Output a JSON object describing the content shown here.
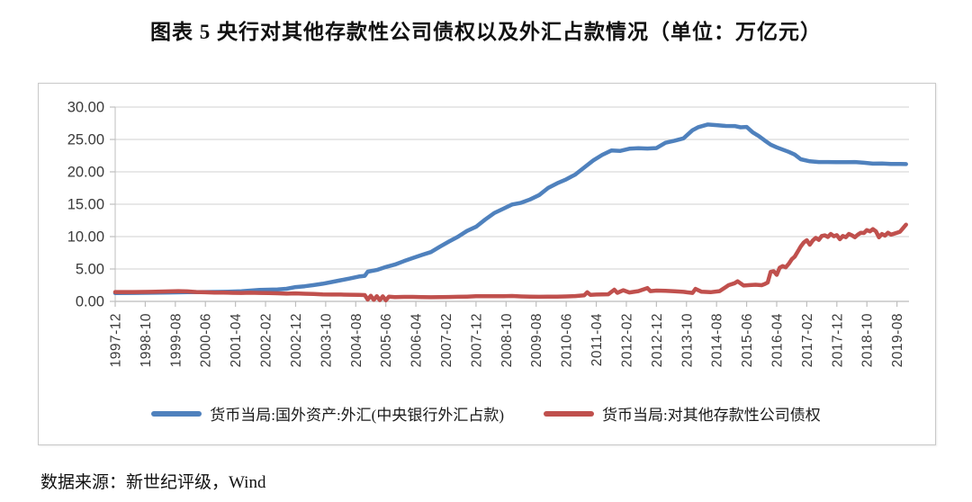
{
  "title": "图表 5  央行对其他存款性公司债权以及外汇占款情况（单位：万亿元）",
  "source": "数据来源：新世纪评级，Wind",
  "colors": {
    "series_blue": "#4f81bd",
    "series_red": "#c0504d",
    "gridline": "#d9d9d9",
    "axis": "#bfbfbf",
    "tick_text": "#3a3a3a",
    "frame_border": "#c9c9c9"
  },
  "chart_data": {
    "type": "line",
    "title": "央行对其他存款性公司债权以及外汇占款情况",
    "unit": "万亿元",
    "grid": "horizontal",
    "legend_position": "bottom",
    "ylim": [
      0,
      30
    ],
    "ytick_step": 5,
    "ytick_labels": [
      "30.00",
      "25.00",
      "20.00",
      "15.00",
      "10.00",
      "5.00",
      "0.00"
    ],
    "x_start": "1997-12",
    "x_end": "2019-12",
    "xtick_labels": [
      "1997-12",
      "1998-10",
      "1999-08",
      "2000-06",
      "2001-04",
      "2002-02",
      "2002-12",
      "2003-10",
      "2004-08",
      "2005-06",
      "2006-04",
      "2007-02",
      "2007-12",
      "2008-10",
      "2009-08",
      "2010-06",
      "2011-04",
      "2012-02",
      "2012-12",
      "2013-10",
      "2014-08",
      "2015-06",
      "2016-04",
      "2017-02",
      "2017-12",
      "2018-10",
      "2019-08"
    ],
    "xtick_interval_months": 10,
    "series": [
      {
        "name": "货币当局:国外资产:外汇(中央银行外汇占款)",
        "color": "#4f81bd",
        "points": [
          [
            "1997-12",
            1.28
          ],
          [
            "1998-06",
            1.31
          ],
          [
            "1998-12",
            1.34
          ],
          [
            "1999-06",
            1.38
          ],
          [
            "1999-12",
            1.41
          ],
          [
            "2000-06",
            1.44
          ],
          [
            "2000-12",
            1.47
          ],
          [
            "2001-06",
            1.56
          ],
          [
            "2001-12",
            1.77
          ],
          [
            "2002-06",
            1.85
          ],
          [
            "2002-09",
            1.95
          ],
          [
            "2002-12",
            2.21
          ],
          [
            "2003-03",
            2.34
          ],
          [
            "2003-06",
            2.52
          ],
          [
            "2003-09",
            2.72
          ],
          [
            "2003-12",
            2.98
          ],
          [
            "2004-03",
            3.26
          ],
          [
            "2004-06",
            3.53
          ],
          [
            "2004-09",
            3.83
          ],
          [
            "2004-11",
            3.95
          ],
          [
            "2004-12",
            4.59
          ],
          [
            "2005-03",
            4.85
          ],
          [
            "2005-06",
            5.31
          ],
          [
            "2005-09",
            5.68
          ],
          [
            "2005-12",
            6.21
          ],
          [
            "2006-03",
            6.69
          ],
          [
            "2006-06",
            7.17
          ],
          [
            "2006-09",
            7.61
          ],
          [
            "2006-12",
            8.44
          ],
          [
            "2007-03",
            9.23
          ],
          [
            "2007-06",
            9.98
          ],
          [
            "2007-09",
            10.87
          ],
          [
            "2007-12",
            11.52
          ],
          [
            "2008-03",
            12.61
          ],
          [
            "2008-06",
            13.62
          ],
          [
            "2008-09",
            14.29
          ],
          [
            "2008-12",
            14.96
          ],
          [
            "2009-03",
            15.22
          ],
          [
            "2009-06",
            15.73
          ],
          [
            "2009-09",
            16.41
          ],
          [
            "2009-12",
            17.51
          ],
          [
            "2010-03",
            18.24
          ],
          [
            "2010-06",
            18.83
          ],
          [
            "2010-09",
            19.59
          ],
          [
            "2010-12",
            20.68
          ],
          [
            "2011-03",
            21.77
          ],
          [
            "2011-06",
            22.62
          ],
          [
            "2011-09",
            23.29
          ],
          [
            "2011-12",
            23.24
          ],
          [
            "2012-03",
            23.57
          ],
          [
            "2012-06",
            23.64
          ],
          [
            "2012-09",
            23.6
          ],
          [
            "2012-12",
            23.67
          ],
          [
            "2013-03",
            24.49
          ],
          [
            "2013-06",
            24.8
          ],
          [
            "2013-09",
            25.16
          ],
          [
            "2013-12",
            26.43
          ],
          [
            "2014-02",
            26.9
          ],
          [
            "2014-05",
            27.3
          ],
          [
            "2014-08",
            27.21
          ],
          [
            "2014-11",
            27.08
          ],
          [
            "2015-02",
            27.07
          ],
          [
            "2015-04",
            26.87
          ],
          [
            "2015-06",
            26.93
          ],
          [
            "2015-08",
            26.1
          ],
          [
            "2015-10",
            25.53
          ],
          [
            "2015-12",
            24.85
          ],
          [
            "2016-02",
            24.2
          ],
          [
            "2016-04",
            23.78
          ],
          [
            "2016-06",
            23.43
          ],
          [
            "2016-08",
            23.09
          ],
          [
            "2016-10",
            22.66
          ],
          [
            "2016-12",
            21.94
          ],
          [
            "2017-03",
            21.62
          ],
          [
            "2017-06",
            21.52
          ],
          [
            "2017-09",
            21.51
          ],
          [
            "2017-12",
            21.48
          ],
          [
            "2018-03",
            21.49
          ],
          [
            "2018-06",
            21.52
          ],
          [
            "2018-09",
            21.4
          ],
          [
            "2018-12",
            21.26
          ],
          [
            "2019-03",
            21.28
          ],
          [
            "2019-06",
            21.21
          ],
          [
            "2019-09",
            21.22
          ],
          [
            "2019-11",
            21.2
          ]
        ]
      },
      {
        "name": "货币当局:对其他存款性公司债权",
        "color": "#c0504d",
        "points": [
          [
            "1997-12",
            1.44
          ],
          [
            "1998-06",
            1.45
          ],
          [
            "1998-12",
            1.47
          ],
          [
            "1999-06",
            1.54
          ],
          [
            "1999-09",
            1.58
          ],
          [
            "1999-12",
            1.54
          ],
          [
            "2000-03",
            1.45
          ],
          [
            "2000-06",
            1.4
          ],
          [
            "2000-09",
            1.36
          ],
          [
            "2000-12",
            1.35
          ],
          [
            "2001-03",
            1.32
          ],
          [
            "2001-06",
            1.3
          ],
          [
            "2001-09",
            1.33
          ],
          [
            "2001-12",
            1.31
          ],
          [
            "2002-03",
            1.28
          ],
          [
            "2002-06",
            1.25
          ],
          [
            "2002-09",
            1.2
          ],
          [
            "2002-12",
            1.23
          ],
          [
            "2003-03",
            1.18
          ],
          [
            "2003-06",
            1.15
          ],
          [
            "2003-09",
            1.08
          ],
          [
            "2003-12",
            1.06
          ],
          [
            "2004-03",
            1.05
          ],
          [
            "2004-06",
            1.03
          ],
          [
            "2004-09",
            1.01
          ],
          [
            "2004-11",
            0.97
          ],
          [
            "2004-12",
            0.28
          ],
          [
            "2005-01",
            0.86
          ],
          [
            "2005-02",
            0.24
          ],
          [
            "2005-03",
            0.8
          ],
          [
            "2005-04",
            0.2
          ],
          [
            "2005-05",
            0.78
          ],
          [
            "2005-06",
            0.17
          ],
          [
            "2005-07",
            0.72
          ],
          [
            "2005-09",
            0.66
          ],
          [
            "2005-12",
            0.7
          ],
          [
            "2006-03",
            0.69
          ],
          [
            "2006-06",
            0.67
          ],
          [
            "2006-09",
            0.64
          ],
          [
            "2006-12",
            0.66
          ],
          [
            "2007-03",
            0.68
          ],
          [
            "2007-06",
            0.71
          ],
          [
            "2007-09",
            0.74
          ],
          [
            "2007-12",
            0.79
          ],
          [
            "2008-03",
            0.8
          ],
          [
            "2008-06",
            0.81
          ],
          [
            "2008-09",
            0.8
          ],
          [
            "2008-12",
            0.84
          ],
          [
            "2009-03",
            0.76
          ],
          [
            "2009-06",
            0.72
          ],
          [
            "2009-09",
            0.71
          ],
          [
            "2009-12",
            0.72
          ],
          [
            "2010-03",
            0.73
          ],
          [
            "2010-06",
            0.76
          ],
          [
            "2010-09",
            0.82
          ],
          [
            "2010-12",
            0.95
          ],
          [
            "2011-01",
            1.4
          ],
          [
            "2011-02",
            1.02
          ],
          [
            "2011-04",
            1.05
          ],
          [
            "2011-06",
            1.08
          ],
          [
            "2011-08",
            1.1
          ],
          [
            "2011-10",
            1.8
          ],
          [
            "2011-11",
            1.32
          ],
          [
            "2012-01",
            1.72
          ],
          [
            "2012-03",
            1.38
          ],
          [
            "2012-06",
            1.58
          ],
          [
            "2012-09",
            2.05
          ],
          [
            "2012-10",
            1.58
          ],
          [
            "2012-12",
            1.67
          ],
          [
            "2013-03",
            1.62
          ],
          [
            "2013-06",
            1.57
          ],
          [
            "2013-09",
            1.47
          ],
          [
            "2013-12",
            1.31
          ],
          [
            "2014-01",
            1.93
          ],
          [
            "2014-03",
            1.48
          ],
          [
            "2014-06",
            1.42
          ],
          [
            "2014-09",
            1.58
          ],
          [
            "2014-11",
            2.2
          ],
          [
            "2014-12",
            2.5
          ],
          [
            "2015-02",
            2.8
          ],
          [
            "2015-03",
            3.1
          ],
          [
            "2015-05",
            2.45
          ],
          [
            "2015-07",
            2.52
          ],
          [
            "2015-09",
            2.57
          ],
          [
            "2015-11",
            2.5
          ],
          [
            "2015-12",
            2.66
          ],
          [
            "2016-01",
            2.92
          ],
          [
            "2016-02",
            4.55
          ],
          [
            "2016-03",
            4.65
          ],
          [
            "2016-04",
            4.1
          ],
          [
            "2016-05",
            5.2
          ],
          [
            "2016-06",
            5.45
          ],
          [
            "2016-07",
            5.25
          ],
          [
            "2016-08",
            5.8
          ],
          [
            "2016-09",
            6.5
          ],
          [
            "2016-10",
            6.9
          ],
          [
            "2016-11",
            7.7
          ],
          [
            "2016-12",
            8.47
          ],
          [
            "2017-01",
            9.1
          ],
          [
            "2017-02",
            9.45
          ],
          [
            "2017-03",
            8.75
          ],
          [
            "2017-04",
            9.4
          ],
          [
            "2017-05",
            9.8
          ],
          [
            "2017-06",
            9.5
          ],
          [
            "2017-07",
            10.1
          ],
          [
            "2017-08",
            10.2
          ],
          [
            "2017-09",
            9.95
          ],
          [
            "2017-10",
            10.4
          ],
          [
            "2017-11",
            10.05
          ],
          [
            "2017-12",
            10.22
          ],
          [
            "2018-01",
            9.6
          ],
          [
            "2018-02",
            10.1
          ],
          [
            "2018-03",
            9.9
          ],
          [
            "2018-04",
            10.4
          ],
          [
            "2018-05",
            10.2
          ],
          [
            "2018-06",
            9.9
          ],
          [
            "2018-07",
            10.3
          ],
          [
            "2018-08",
            10.6
          ],
          [
            "2018-09",
            10.55
          ],
          [
            "2018-10",
            11.0
          ],
          [
            "2018-11",
            10.8
          ],
          [
            "2018-12",
            11.15
          ],
          [
            "2019-01",
            10.8
          ],
          [
            "2019-02",
            9.9
          ],
          [
            "2019-03",
            10.4
          ],
          [
            "2019-04",
            10.15
          ],
          [
            "2019-05",
            10.6
          ],
          [
            "2019-06",
            10.3
          ],
          [
            "2019-07",
            10.45
          ],
          [
            "2019-09",
            10.75
          ],
          [
            "2019-11",
            11.85
          ]
        ]
      }
    ]
  }
}
